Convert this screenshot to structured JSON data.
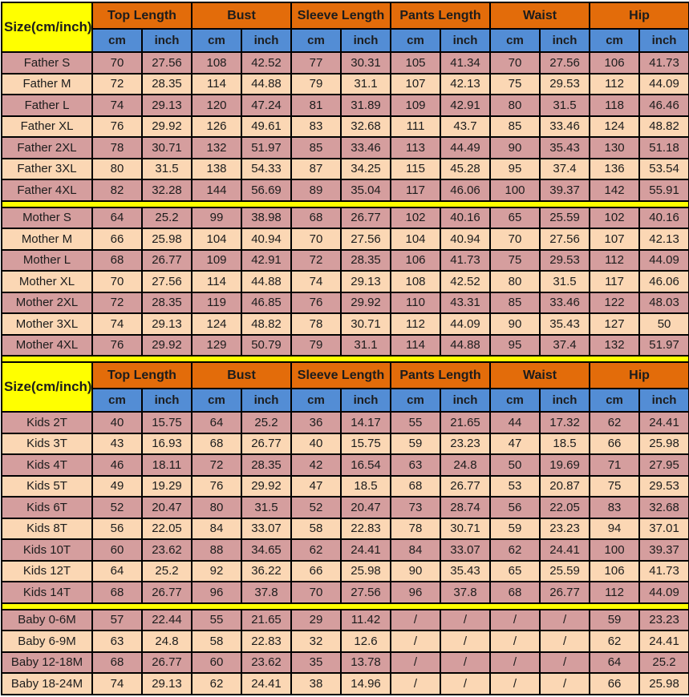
{
  "colors": {
    "header_fill": "#E36C0A",
    "unit_fill": "#538DD5",
    "size_fill": "#FFFF00",
    "separator_fill": "#FFFF00",
    "row_pink": "#D59E9E",
    "row_peach": "#FBD7B4",
    "border": "#000000"
  },
  "chart_data": {
    "type": "table",
    "size_label": "Size(cm/inch)",
    "measurement_headers": [
      "Top Length",
      "Bust",
      "Sleeve Length",
      "Pants Length",
      "Waist",
      "Hip"
    ],
    "unit_headers": [
      "cm",
      "inch"
    ],
    "blocks": [
      {
        "sections": [
          {
            "name": "father",
            "rows": [
              {
                "label": "Father S",
                "values": [
                  "70",
                  "27.56",
                  "108",
                  "42.52",
                  "77",
                  "30.31",
                  "105",
                  "41.34",
                  "70",
                  "27.56",
                  "106",
                  "41.73"
                ]
              },
              {
                "label": "Father M",
                "values": [
                  "72",
                  "28.35",
                  "114",
                  "44.88",
                  "79",
                  "31.1",
                  "107",
                  "42.13",
                  "75",
                  "29.53",
                  "112",
                  "44.09"
                ]
              },
              {
                "label": "Father L",
                "values": [
                  "74",
                  "29.13",
                  "120",
                  "47.24",
                  "81",
                  "31.89",
                  "109",
                  "42.91",
                  "80",
                  "31.5",
                  "118",
                  "46.46"
                ]
              },
              {
                "label": "Father XL",
                "values": [
                  "76",
                  "29.92",
                  "126",
                  "49.61",
                  "83",
                  "32.68",
                  "111",
                  "43.7",
                  "85",
                  "33.46",
                  "124",
                  "48.82"
                ]
              },
              {
                "label": "Father 2XL",
                "values": [
                  "78",
                  "30.71",
                  "132",
                  "51.97",
                  "85",
                  "33.46",
                  "113",
                  "44.49",
                  "90",
                  "35.43",
                  "130",
                  "51.18"
                ]
              },
              {
                "label": "Father 3XL",
                "values": [
                  "80",
                  "31.5",
                  "138",
                  "54.33",
                  "87",
                  "34.25",
                  "115",
                  "45.28",
                  "95",
                  "37.4",
                  "136",
                  "53.54"
                ]
              },
              {
                "label": "Father 4XL",
                "values": [
                  "82",
                  "32.28",
                  "144",
                  "56.69",
                  "89",
                  "35.04",
                  "117",
                  "46.06",
                  "100",
                  "39.37",
                  "142",
                  "55.91"
                ]
              }
            ]
          },
          {
            "name": "mother",
            "rows": [
              {
                "label": "Mother S",
                "values": [
                  "64",
                  "25.2",
                  "99",
                  "38.98",
                  "68",
                  "26.77",
                  "102",
                  "40.16",
                  "65",
                  "25.59",
                  "102",
                  "40.16"
                ]
              },
              {
                "label": "Mother M",
                "values": [
                  "66",
                  "25.98",
                  "104",
                  "40.94",
                  "70",
                  "27.56",
                  "104",
                  "40.94",
                  "70",
                  "27.56",
                  "107",
                  "42.13"
                ]
              },
              {
                "label": "Mother L",
                "values": [
                  "68",
                  "26.77",
                  "109",
                  "42.91",
                  "72",
                  "28.35",
                  "106",
                  "41.73",
                  "75",
                  "29.53",
                  "112",
                  "44.09"
                ]
              },
              {
                "label": "Mother XL",
                "values": [
                  "70",
                  "27.56",
                  "114",
                  "44.88",
                  "74",
                  "29.13",
                  "108",
                  "42.52",
                  "80",
                  "31.5",
                  "117",
                  "46.06"
                ]
              },
              {
                "label": "Mother 2XL",
                "values": [
                  "72",
                  "28.35",
                  "119",
                  "46.85",
                  "76",
                  "29.92",
                  "110",
                  "43.31",
                  "85",
                  "33.46",
                  "122",
                  "48.03"
                ]
              },
              {
                "label": "Mother 3XL",
                "values": [
                  "74",
                  "29.13",
                  "124",
                  "48.82",
                  "78",
                  "30.71",
                  "112",
                  "44.09",
                  "90",
                  "35.43",
                  "127",
                  "50"
                ]
              },
              {
                "label": "Mother 4XL",
                "values": [
                  "76",
                  "29.92",
                  "129",
                  "50.79",
                  "79",
                  "31.1",
                  "114",
                  "44.88",
                  "95",
                  "37.4",
                  "132",
                  "51.97"
                ]
              }
            ]
          }
        ]
      },
      {
        "sections": [
          {
            "name": "kids",
            "rows": [
              {
                "label": "Kids 2T",
                "values": [
                  "40",
                  "15.75",
                  "64",
                  "25.2",
                  "36",
                  "14.17",
                  "55",
                  "21.65",
                  "44",
                  "17.32",
                  "62",
                  "24.41"
                ]
              },
              {
                "label": "Kids 3T",
                "values": [
                  "43",
                  "16.93",
                  "68",
                  "26.77",
                  "40",
                  "15.75",
                  "59",
                  "23.23",
                  "47",
                  "18.5",
                  "66",
                  "25.98"
                ]
              },
              {
                "label": "Kids 4T",
                "values": [
                  "46",
                  "18.11",
                  "72",
                  "28.35",
                  "42",
                  "16.54",
                  "63",
                  "24.8",
                  "50",
                  "19.69",
                  "71",
                  "27.95"
                ]
              },
              {
                "label": "Kids 5T",
                "values": [
                  "49",
                  "19.29",
                  "76",
                  "29.92",
                  "47",
                  "18.5",
                  "68",
                  "26.77",
                  "53",
                  "20.87",
                  "75",
                  "29.53"
                ]
              },
              {
                "label": "Kids 6T",
                "values": [
                  "52",
                  "20.47",
                  "80",
                  "31.5",
                  "52",
                  "20.47",
                  "73",
                  "28.74",
                  "56",
                  "22.05",
                  "83",
                  "32.68"
                ]
              },
              {
                "label": "Kids 8T",
                "values": [
                  "56",
                  "22.05",
                  "84",
                  "33.07",
                  "58",
                  "22.83",
                  "78",
                  "30.71",
                  "59",
                  "23.23",
                  "94",
                  "37.01"
                ]
              },
              {
                "label": "Kids 10T",
                "values": [
                  "60",
                  "23.62",
                  "88",
                  "34.65",
                  "62",
                  "24.41",
                  "84",
                  "33.07",
                  "62",
                  "24.41",
                  "100",
                  "39.37"
                ]
              },
              {
                "label": "Kids 12T",
                "values": [
                  "64",
                  "25.2",
                  "92",
                  "36.22",
                  "66",
                  "25.98",
                  "90",
                  "35.43",
                  "65",
                  "25.59",
                  "106",
                  "41.73"
                ]
              },
              {
                "label": "Kids 14T",
                "values": [
                  "68",
                  "26.77",
                  "96",
                  "37.8",
                  "70",
                  "27.56",
                  "96",
                  "37.8",
                  "68",
                  "26.77",
                  "112",
                  "44.09"
                ]
              }
            ]
          },
          {
            "name": "baby",
            "rows": [
              {
                "label": "Baby 0-6M",
                "values": [
                  "57",
                  "22.44",
                  "55",
                  "21.65",
                  "29",
                  "11.42",
                  "/",
                  "/",
                  "/",
                  "/",
                  "59",
                  "23.23"
                ]
              },
              {
                "label": "Baby 6-9M",
                "values": [
                  "63",
                  "24.8",
                  "58",
                  "22.83",
                  "32",
                  "12.6",
                  "/",
                  "/",
                  "/",
                  "/",
                  "62",
                  "24.41"
                ]
              },
              {
                "label": "Baby 12-18M",
                "values": [
                  "68",
                  "26.77",
                  "60",
                  "23.62",
                  "35",
                  "13.78",
                  "/",
                  "/",
                  "/",
                  "/",
                  "64",
                  "25.2"
                ]
              },
              {
                "label": "Baby 18-24M",
                "values": [
                  "74",
                  "29.13",
                  "62",
                  "24.41",
                  "38",
                  "14.96",
                  "/",
                  "/",
                  "/",
                  "/",
                  "66",
                  "25.98"
                ]
              }
            ]
          }
        ]
      }
    ]
  }
}
